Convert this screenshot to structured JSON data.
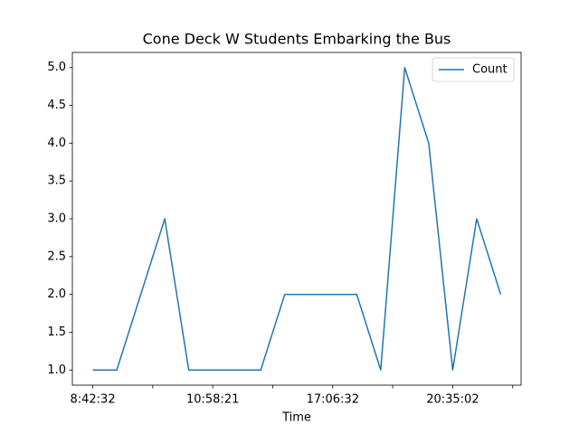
{
  "chart_data": {
    "type": "line",
    "title": "Cone Deck W Students Embarking the Bus",
    "xlabel": "Time",
    "categories": [
      "8:42:32",
      null,
      null,
      null,
      null,
      "10:58:21",
      null,
      null,
      null,
      null,
      "17:06:32",
      null,
      null,
      null,
      null,
      "20:35:02",
      null,
      null
    ],
    "series": [
      {
        "name": "Count",
        "color": "#1f77b4",
        "values": [
          1,
          1,
          2,
          3,
          1,
          1,
          1,
          1,
          2,
          2,
          2,
          2,
          1,
          5,
          4,
          1,
          3,
          2
        ]
      }
    ],
    "xlim": [
      -0.85,
      17.85
    ],
    "xticks": [
      0,
      2.5,
      5,
      7.5,
      10,
      12.5,
      15,
      17.5
    ],
    "ylim": [
      0.8,
      5.2
    ],
    "yticks": [
      {
        "value": 1,
        "label": "1.0"
      },
      {
        "value": 1.5,
        "label": "1.5"
      },
      {
        "value": 2,
        "label": "2.0"
      },
      {
        "value": 2.5,
        "label": "2.5"
      },
      {
        "value": 3,
        "label": "3.0"
      },
      {
        "value": 3.5,
        "label": "3.5"
      },
      {
        "value": 4,
        "label": "4.0"
      },
      {
        "value": 4.5,
        "label": "4.5"
      },
      {
        "value": 5,
        "label": "5.0"
      }
    ],
    "legend": "upper right",
    "grid": false
  }
}
